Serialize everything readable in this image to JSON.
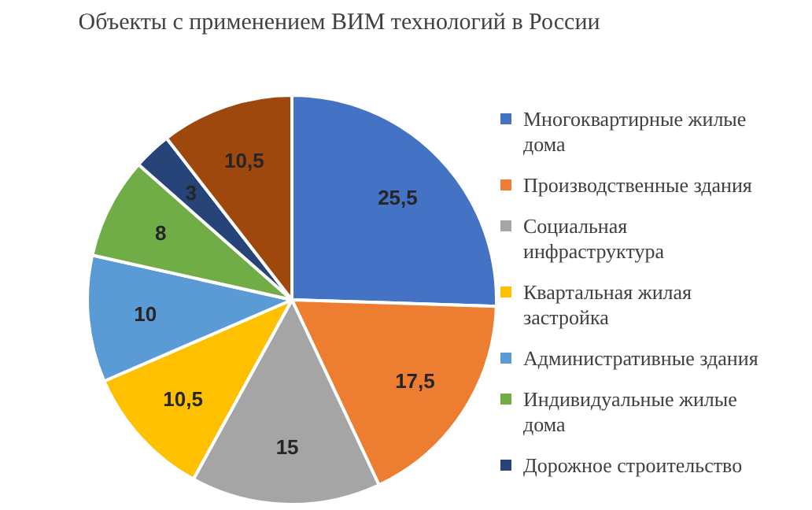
{
  "chart_data": {
    "type": "pie",
    "title": "Объекты с применением ВИМ технологий в России",
    "categories": [
      "Многоквартирные жилые дома",
      "Производственные здания",
      "Социальная инфраструктура",
      "Квартальная жилая застройка",
      "Административные здания",
      "Индивидуальные жилые дома",
      "Дорожное строительство",
      null
    ],
    "values": [
      25.5,
      17.5,
      15,
      10.5,
      10,
      8,
      3,
      10.5
    ],
    "value_labels": [
      "25,5",
      "17,5",
      "15",
      "10,5",
      "10",
      "8",
      "3",
      "10,5"
    ],
    "colors": [
      "#4472c4",
      "#ed7d31",
      "#a5a5a5",
      "#ffc000",
      "#5b9bd5",
      "#70ad47",
      "#264478",
      "#9e480e"
    ],
    "legend": "right"
  }
}
